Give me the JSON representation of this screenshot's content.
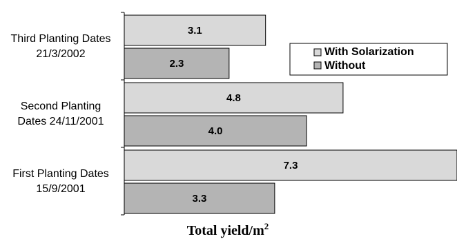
{
  "chart_data": {
    "type": "bar",
    "orientation": "horizontal",
    "categories": [
      [
        "Third Planting Dates",
        "21/3/2002"
      ],
      [
        "Second Planting",
        "Dates 24/11/2001"
      ],
      [
        "First Planting Dates",
        "15/9/2001"
      ]
    ],
    "series": [
      {
        "name": "With Solarization",
        "values": [
          3.1,
          4.8,
          7.3
        ],
        "labels": [
          "3.1",
          "4.8",
          "7.3"
        ],
        "color": "#d9d9d9"
      },
      {
        "name": "Without",
        "values": [
          2.3,
          4.0,
          3.3
        ],
        "labels": [
          "2.3",
          "4.0",
          "3.3"
        ],
        "color": "#b4b4b4"
      }
    ],
    "xlabel": "Total yield/m",
    "xlabel_superscript": "2",
    "xlim": [
      0,
      7.3
    ],
    "grid": false,
    "legend_position": "right"
  }
}
